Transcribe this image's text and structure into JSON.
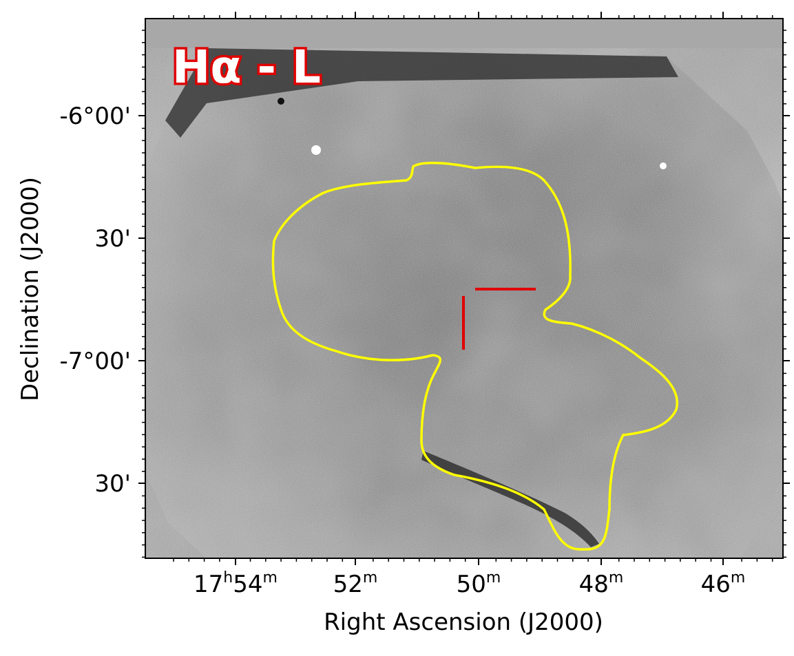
{
  "panel_label": "Hα - L",
  "colors": {
    "background": "#ffffff",
    "outside_footprint": "#a8a8a8",
    "contour": "#ffff00",
    "marker": "#e00000",
    "label_fill": "#ffffff",
    "label_stroke": "#e00000"
  },
  "axes": {
    "xlabel": "Right Ascension (J2000)",
    "ylabel": "Declination (J2000)",
    "x_ticks": [
      {
        "h": "17",
        "hsup": "h",
        "m": "54",
        "msup": "m"
      },
      {
        "h": "",
        "hsup": "",
        "m": "52",
        "msup": "m"
      },
      {
        "h": "",
        "hsup": "",
        "m": "50",
        "msup": "m"
      },
      {
        "h": "",
        "hsup": "",
        "m": "48",
        "msup": "m"
      },
      {
        "h": "",
        "hsup": "",
        "m": "46",
        "msup": "m"
      }
    ],
    "y_ticks": [
      "-6°00'",
      "30'",
      "-7°00'",
      "30'"
    ]
  },
  "image_description_visible": {
    "type": "astronomical narrowband image (grayscale, inverted stars as dark/white speckle)",
    "contour": "yellow outline of a nebular region",
    "marker": "red crosshair-style tick marks near center"
  }
}
